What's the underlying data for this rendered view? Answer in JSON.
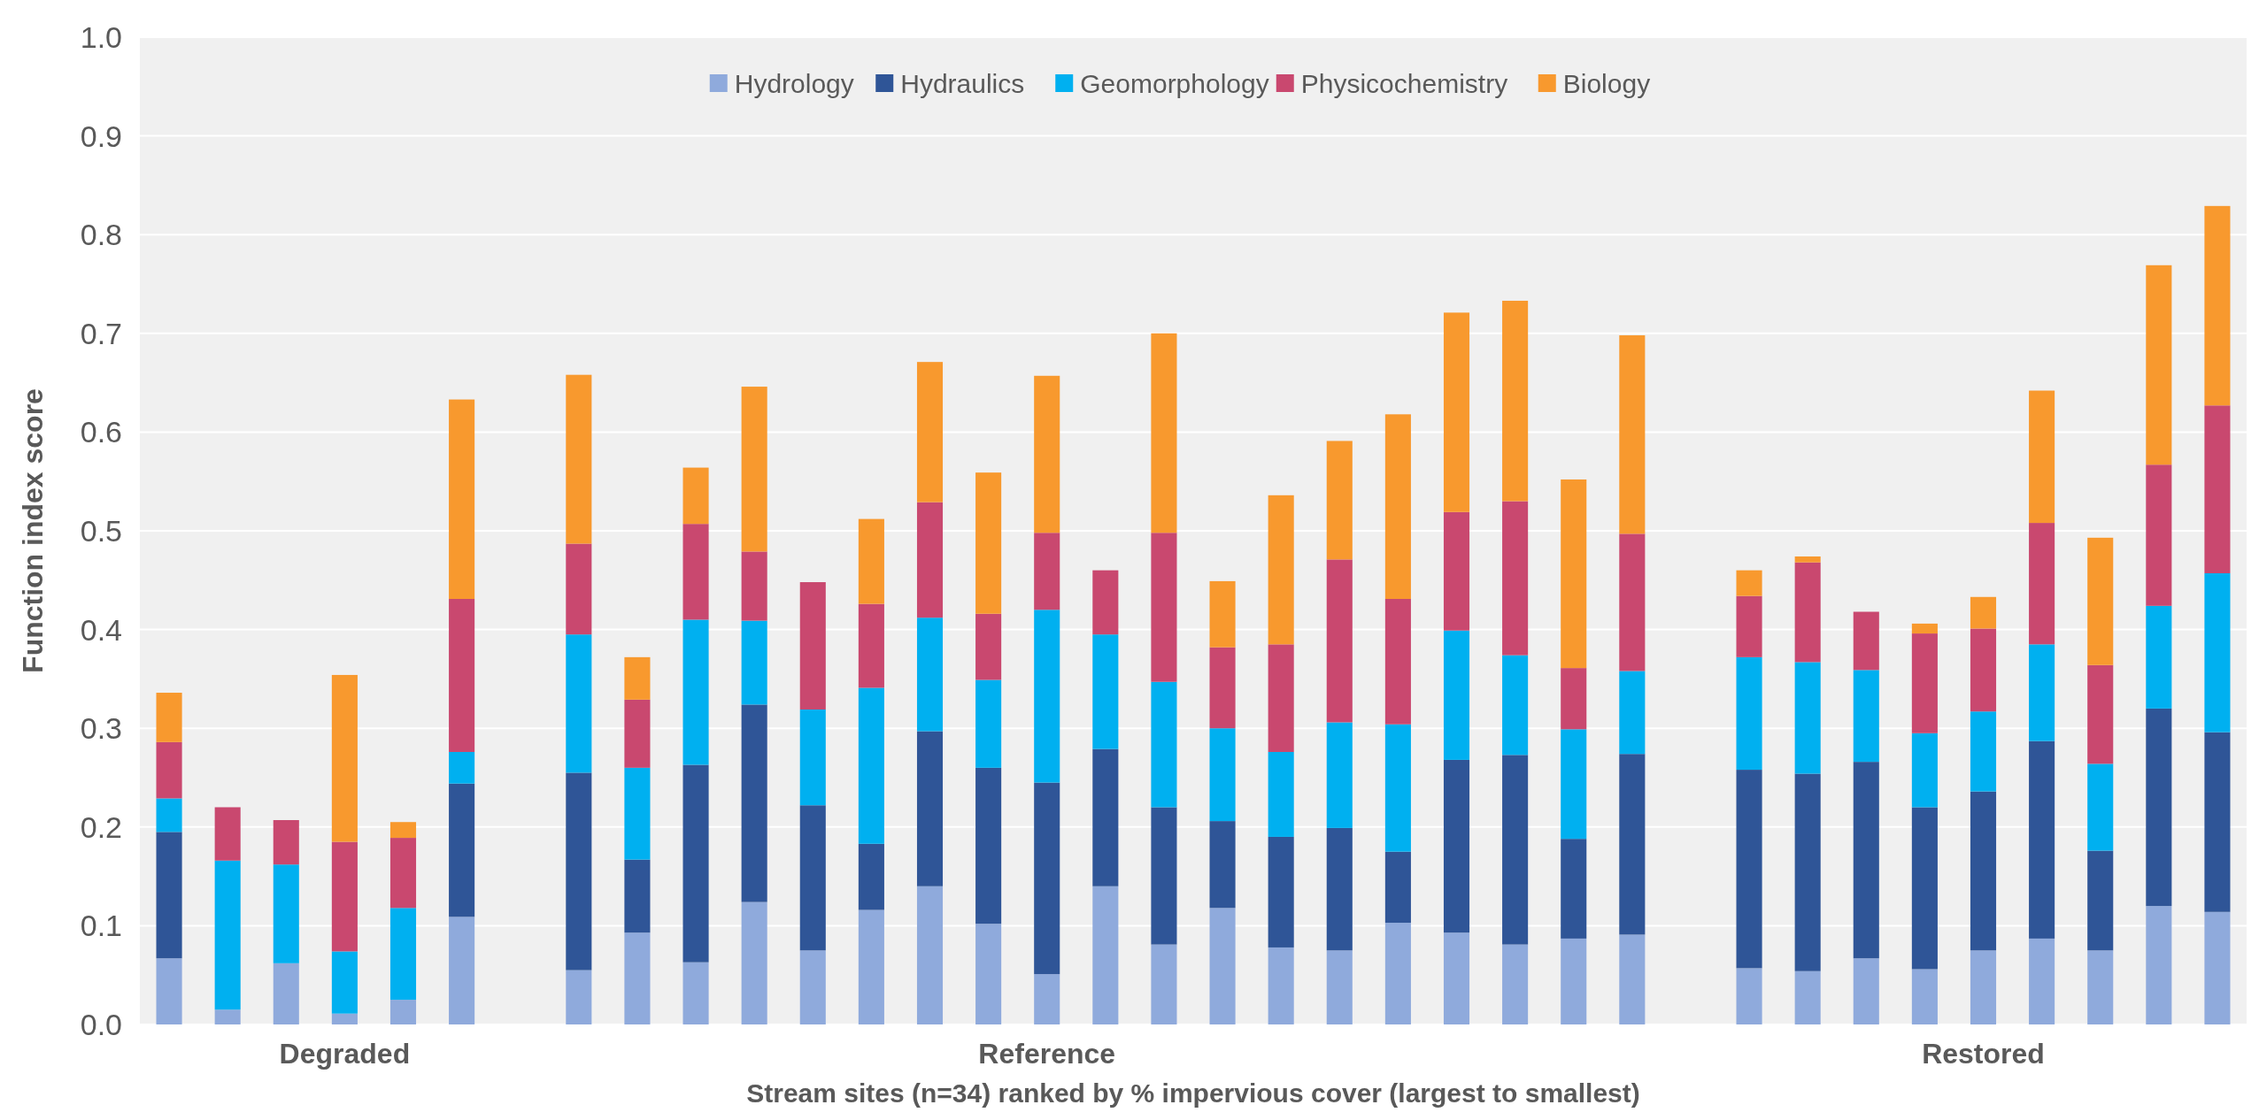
{
  "chart_data": {
    "type": "bar",
    "stacked": true,
    "xlabel": "Stream sites (n=34) ranked by % impervious cover (largest to smallest)",
    "ylabel": "Function index score",
    "categories": [
      null,
      null,
      null,
      "Degraded",
      null,
      null,
      null,
      null,
      null,
      null,
      null,
      null,
      null,
      null,
      null,
      "Reference",
      null,
      null,
      null,
      null,
      null,
      null,
      null,
      null,
      null,
      null,
      null,
      null,
      null,
      null,
      null,
      "Restored",
      null,
      null,
      null,
      null
    ],
    "series": [
      {
        "name": "Hydrology",
        "color": "#8faadc",
        "values": [
          0.067,
          0.015,
          0.062,
          0.011,
          0.025,
          0.109,
          null,
          0.055,
          0.093,
          0.063,
          0.124,
          0.075,
          0.116,
          0.14,
          0.102,
          0.051,
          0.14,
          0.081,
          0.118,
          0.078,
          0.075,
          0.103,
          0.093,
          0.081,
          0.087,
          0.091,
          null,
          0.057,
          0.054,
          0.067,
          0.056,
          0.075,
          0.087,
          0.075,
          0.12,
          0.114
        ]
      },
      {
        "name": "Hydraulics",
        "color": "#2f5597",
        "values": [
          0.128,
          0,
          0,
          0,
          0,
          0.135,
          null,
          0.2,
          0.074,
          0.2,
          0.2,
          0.147,
          0.067,
          0.157,
          0.158,
          0.194,
          0.139,
          0.139,
          0.088,
          0.112,
          0.124,
          0.072,
          0.175,
          0.192,
          0.101,
          0.183,
          null,
          0.201,
          0.2,
          0.199,
          0.164,
          0.161,
          0.2,
          0.101,
          0.2,
          0.182
        ]
      },
      {
        "name": "Geomorphology",
        "color": "#00b0f0",
        "values": [
          0.034,
          0.151,
          0.1,
          0.063,
          0.093,
          0.032,
          null,
          0.14,
          0.093,
          0.147,
          0.085,
          0.097,
          0.158,
          0.115,
          0.089,
          0.175,
          0.116,
          0.127,
          0.094,
          0.086,
          0.107,
          0.129,
          0.131,
          0.101,
          0.111,
          0.084,
          null,
          0.114,
          0.113,
          0.093,
          0.075,
          0.081,
          0.098,
          0.088,
          0.104,
          0.161
        ]
      },
      {
        "name": "Physicochemistry",
        "color": "#c9486f",
        "values": [
          0.057,
          0.054,
          0.045,
          0.111,
          0.071,
          0.155,
          null,
          0.092,
          0.069,
          0.097,
          0.07,
          0.129,
          0.085,
          0.117,
          0.067,
          0.078,
          0.065,
          0.151,
          0.082,
          0.109,
          0.165,
          0.127,
          0.12,
          0.156,
          0.062,
          0.139,
          null,
          0.062,
          0.101,
          0.059,
          0.101,
          0.084,
          0.123,
          0.1,
          0.143,
          0.17
        ]
      },
      {
        "name": "Biology",
        "color": "#f8992e",
        "values": [
          0.05,
          0,
          0,
          0.169,
          0.016,
          0.202,
          null,
          0.171,
          0.043,
          0.057,
          0.167,
          0,
          0.086,
          0.142,
          0.143,
          0.159,
          0,
          0.202,
          0.067,
          0.151,
          0.12,
          0.187,
          0.202,
          0.203,
          0.191,
          0.201,
          null,
          0.026,
          0.006,
          0,
          0.01,
          0.032,
          0.134,
          0.129,
          0.202,
          0.202
        ]
      }
    ],
    "ylim": [
      0,
      1
    ],
    "yticks": [
      {
        "value": 0,
        "label": "0.0"
      },
      0.1,
      0.2,
      0.3,
      0.4,
      0.5,
      0.6,
      0.7,
      0.8,
      0.9,
      {
        "value": 1,
        "label": "1.0"
      }
    ],
    "grid": "y",
    "legend": "top"
  }
}
